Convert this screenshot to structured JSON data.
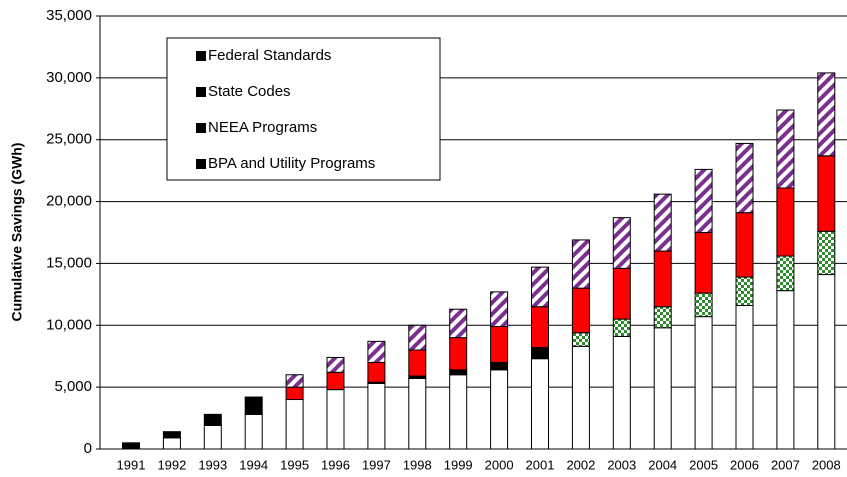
{
  "chart_data": {
    "type": "stacked_bar",
    "y_label": "Cumulative Savings (GWh)",
    "categories": [
      "1991",
      "1992",
      "1993",
      "1994",
      "1995",
      "1996",
      "1997",
      "1998",
      "1999",
      "2000",
      "2001",
      "2002",
      "2003",
      "2004",
      "2005",
      "2006",
      "2007",
      "2008"
    ],
    "series": [
      {
        "name": "BPA and Utility Programs",
        "color": "#ffffff",
        "values": [
          0,
          900,
          1900,
          2800,
          4000,
          4800,
          5300,
          5700,
          6000,
          6400,
          7300,
          8300,
          9100,
          9800,
          10700,
          11600,
          12800,
          14100
        ]
      },
      {
        "name": "NEEA Programs",
        "color": "#2e8b2e",
        "colors": [
          "#000000",
          "#000000",
          "#000000",
          "#000000",
          "#000000",
          "#000000",
          "#000000",
          "#000000",
          "#000000",
          "#000000",
          "#000000",
          "#2e8b2e",
          "#2e8b2e",
          "#2e8b2e",
          "#2e8b2e",
          "#2e8b2e",
          "#2e8b2e",
          "#2e8b2e"
        ],
        "values": [
          500,
          500,
          900,
          1400,
          0,
          0,
          100,
          200,
          400,
          600,
          900,
          1100,
          1400,
          1700,
          1900,
          2300,
          2800,
          3500
        ]
      },
      {
        "name": "State Codes",
        "color": "#ff0000",
        "values": [
          0,
          0,
          0,
          0,
          1000,
          1400,
          1600,
          2100,
          2600,
          2900,
          3300,
          3600,
          4100,
          4500,
          4900,
          5200,
          5500,
          6100
        ]
      },
      {
        "name": "Federal Standards",
        "color": "#7b2f8f",
        "pattern": "hatch",
        "values": [
          0,
          0,
          0,
          0,
          1000,
          1200,
          1700,
          2000,
          2300,
          2800,
          3200,
          3900,
          4100,
          4600,
          5100,
          5600,
          6300,
          6700
        ]
      }
    ],
    "ylim": [
      0,
      35000
    ],
    "yticks": [
      0,
      {
        "value": 5000,
        "label": "5,000"
      },
      {
        "value": 10000,
        "label": "10,000"
      },
      {
        "value": 15000,
        "label": "15,000"
      },
      {
        "value": 20000,
        "label": "20,000"
      },
      {
        "value": 25000,
        "label": "25,000"
      },
      {
        "value": 30000,
        "label": "30,000"
      },
      {
        "value": 35000,
        "label": "35,000"
      }
    ],
    "grid": true,
    "legend": "upper left"
  }
}
